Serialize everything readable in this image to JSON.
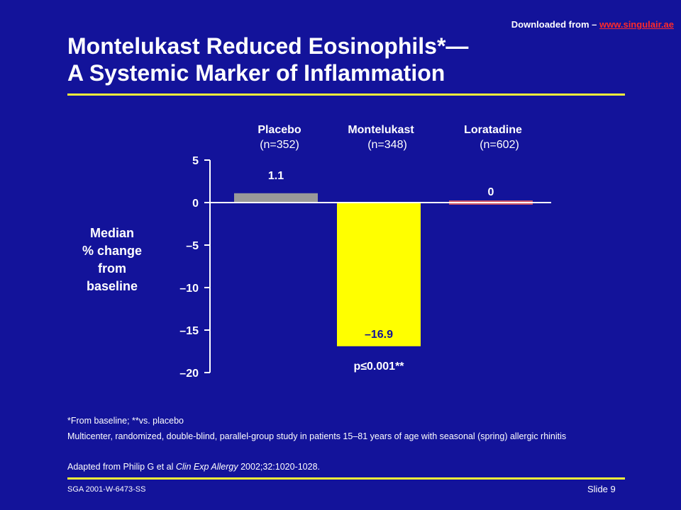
{
  "header": {
    "download_prefix": "Downloaded from – ",
    "download_link": "www.singulair.ae",
    "title_line1": "Montelukast Reduced Eosinophils*—",
    "title_line2": "A Systemic Marker of Inflammation"
  },
  "chart_data": {
    "type": "bar",
    "categories": [
      "Placebo",
      "Montelukast",
      "Loratadine"
    ],
    "category_n": [
      "(n=352)",
      "(n=348)",
      "(n=602)"
    ],
    "values": [
      1.1,
      -16.9,
      0
    ],
    "value_labels": [
      "1.1",
      "–16.9",
      "0"
    ],
    "bar_colors": [
      "#999999",
      "#ffff00",
      "#cc5566"
    ],
    "ylabel_lines": [
      "Median",
      "% change",
      "from",
      "baseline"
    ],
    "ylim": [
      -20,
      5
    ],
    "yticks": [
      5,
      0,
      -5,
      -10,
      -15,
      -20
    ],
    "ytick_labels": [
      "5",
      "0",
      "–5",
      "–10",
      "–15",
      "–20"
    ],
    "annotation": "p≤0.001**",
    "grid": false
  },
  "footnotes": {
    "f1": "*From baseline; **vs. placebo",
    "f2": "Multicenter, randomized, double-blind, parallel-group study in patients 15–81 years of age with seasonal (spring) allergic rhinitis",
    "f3_pre": "Adapted from Philip G et al ",
    "f3_journal": "Clin Exp Allergy",
    "f3_post": " 2002;32:1020-1028."
  },
  "footer": {
    "code": "SGA 2001-W-6473-SS",
    "slide": "Slide 9"
  }
}
